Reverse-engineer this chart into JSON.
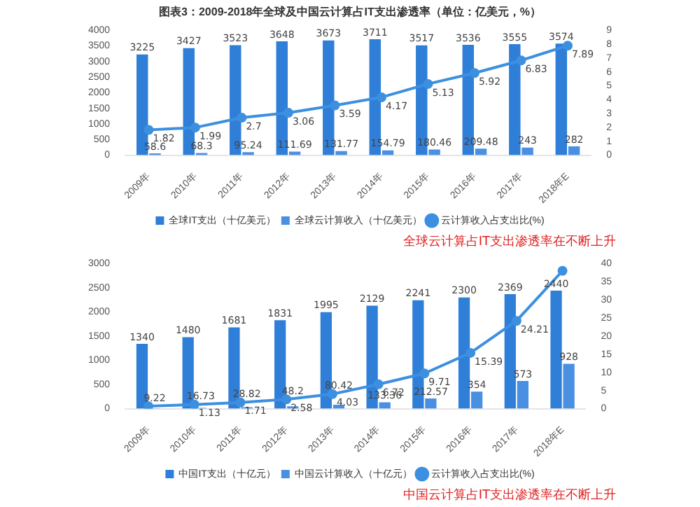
{
  "chart_data": [
    {
      "type": "bar",
      "title": "图表3：2009-2018年全球及中国云计算占IT支出渗透率（单位：亿美元，%）",
      "categories": [
        "2009年",
        "2010年",
        "2011年",
        "2012年",
        "2013年",
        "2014年",
        "2015年",
        "2016年",
        "2017年",
        "2018年E"
      ],
      "series": [
        {
          "name": "全球IT支出（十亿美元）",
          "color": "#2f7ed8",
          "values": [
            3225,
            3427,
            3523,
            3648,
            3673,
            3711,
            3517,
            3536,
            3555,
            3574
          ]
        },
        {
          "name": "全球云计算收入（十亿美元）",
          "color": "#4a90e2",
          "values": [
            58.6,
            68.3,
            95.24,
            111.69,
            131.77,
            154.79,
            180.46,
            209.48,
            243,
            282
          ]
        },
        {
          "name": "云计算收入占支出比(%)",
          "type": "line",
          "axis": "y2",
          "color": "#3d8fe0",
          "values": [
            1.82,
            1.99,
            2.7,
            3.06,
            3.59,
            4.17,
            5.13,
            5.92,
            6.83,
            7.89
          ]
        }
      ],
      "ylim": [
        0,
        4000
      ],
      "yticks": [
        0,
        500,
        1000,
        1500,
        2000,
        2500,
        3000,
        3500,
        4000
      ],
      "y2lim": [
        0,
        9
      ],
      "y2ticks": [
        0,
        1,
        2,
        3,
        4,
        5,
        6,
        7,
        8,
        9
      ],
      "data_labels": true,
      "legend": "bottom",
      "marker": "circle",
      "annotations": [
        "全球云计算占IT支出渗透率在不断上升"
      ]
    },
    {
      "type": "bar",
      "categories": [
        "2009年",
        "2010年",
        "2011年",
        "2012年",
        "2013年",
        "2014年",
        "2015年",
        "2016年",
        "2017年",
        "2018年E"
      ],
      "series": [
        {
          "name": "中国IT支出（十亿元）",
          "color": "#2f7ed8",
          "values": [
            1340,
            1480,
            1681,
            1831,
            1995,
            2129,
            2241,
            2300,
            2369,
            2440
          ],
          "value_labels": [
            "1340",
            "1480",
            "1681",
            "1831",
            "1995",
            "2129",
            "2241",
            "2300",
            "2369",
            "2440"
          ]
        },
        {
          "name": "中国云计算收入（十亿元）",
          "color": "#4a90e2",
          "values": [
            9.22,
            16.73,
            28.82,
            48.2,
            80.42,
            133.36,
            212.57,
            354,
            573,
            928
          ],
          "value_labels": [
            "9.22",
            "16.73",
            "28.82",
            "48.2",
            "80.42",
            "133.36",
            "212.57",
            "354",
            "573",
            "928"
          ]
        },
        {
          "name": "云计算收入占支出比(%)",
          "type": "line",
          "axis": "y2",
          "color": "#3d8fe0",
          "values": [
            0.7,
            1.13,
            1.71,
            2.58,
            4.03,
            6.72,
            9.71,
            15.39,
            24.21,
            38
          ],
          "value_labels": [
            null,
            "1.13",
            "1.71",
            "2.58",
            "4.03",
            "6.72",
            "9.71",
            "15.39",
            "24.21",
            null
          ]
        }
      ],
      "ylim": [
        0,
        3000
      ],
      "yticks": [
        0,
        500,
        1000,
        1500,
        2000,
        2500,
        3000
      ],
      "y2lim": [
        0,
        40
      ],
      "y2ticks": [
        0,
        5,
        10,
        15,
        20,
        25,
        30,
        35,
        40
      ],
      "legend": "bottom",
      "marker": "circle",
      "annotations": [
        "中国云计算占IT支出渗透率在不断上升"
      ]
    }
  ]
}
